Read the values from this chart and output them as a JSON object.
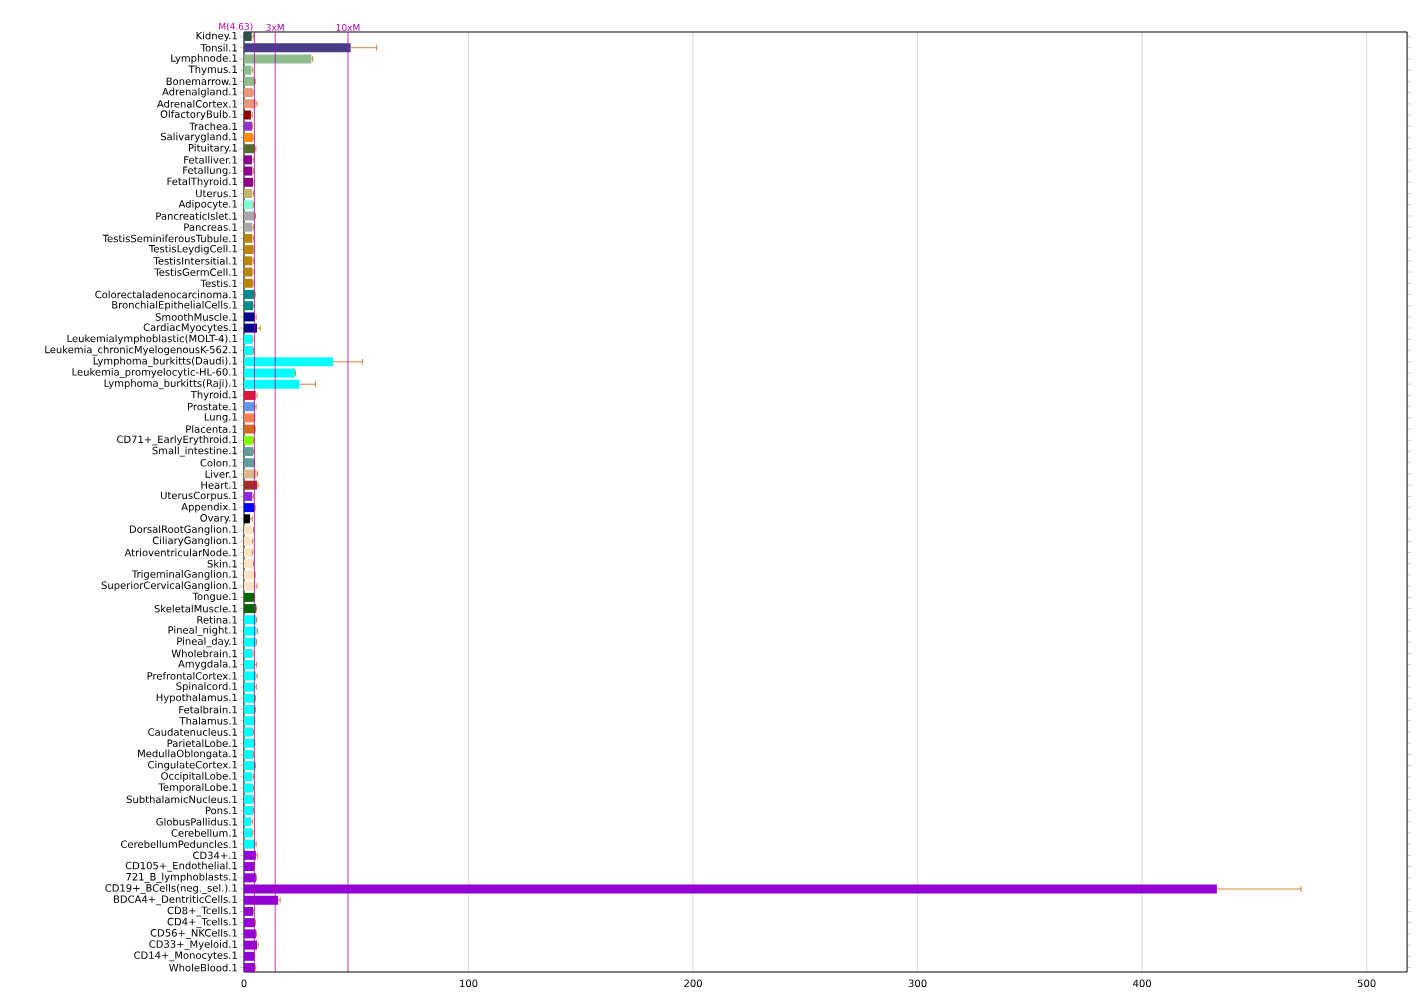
{
  "chart_data": {
    "type": "bar",
    "orientation": "horizontal",
    "categories": [
      "Kidney.1",
      "Tonsil.1",
      "Lymphnode.1",
      "Thymus.1",
      "Bonemarrow.1",
      "Adrenalgland.1",
      "AdrenalCortex.1",
      "OlfactoryBulb.1",
      "Trachea.1",
      "Salivarygland.1",
      "Pituitary.1",
      "Fetalliver.1",
      "Fetallung.1",
      "FetalThyroid.1",
      "Uterus.1",
      "Adipocyte.1",
      "PancreaticIslet.1",
      "Pancreas.1",
      "TestisSeminiferousTubule.1",
      "TestisLeydigCell.1",
      "TestisIntersitial.1",
      "TestisGermCell.1",
      "Testis.1",
      "Colorectaladenocarcinoma.1",
      "BronchialEpithelialCells.1",
      "SmoothMuscle.1",
      "CardiacMyocytes.1",
      "Leukemialymphoblastic(MOLT-4).1",
      "Leukemia_chronicMyelogenousK-562.1",
      "Lymphoma_burkitts(Daudi).1",
      "Leukemia_promyelocytic-HL-60.1",
      "Lymphoma_burkitts(Raji).1",
      "Thyroid.1",
      "Prostate.1",
      "Lung.1",
      "Placenta.1",
      "CD71+_EarlyErythroid.1",
      "Small_intestine.1",
      "Colon.1",
      "Liver.1",
      "Heart.1",
      "UterusCorpus.1",
      "Appendix.1",
      "Ovary.1",
      "DorsalRootGanglion.1",
      "CiliaryGanglion.1",
      "AtrioventricularNode.1",
      "Skin.1",
      "TrigeminalGanglion.1",
      "SuperiorCervicalGanglion.1",
      "Tongue.1",
      "SkeletalMuscle.1",
      "Retina.1",
      "Pineal_night.1",
      "Pineal_day.1",
      "Wholebrain.1",
      "Amygdala.1",
      "PrefrontalCortex.1",
      "Spinalcord.1",
      "Hypothalamus.1",
      "Fetalbrain.1",
      "Thalamus.1",
      "Caudatenucleus.1",
      "ParietalLobe.1",
      "MedullaOblongata.1",
      "CingulateCortex.1",
      "OccipitalLobe.1",
      "TemporalLobe.1",
      "SubthalamicNucleus.1",
      "Pons.1",
      "GlobusPallidus.1",
      "Cerebellum.1",
      "CerebellumPeduncles.1",
      "CD34+.1",
      "CD105+_Endothelial.1",
      "721_B_lymphoblasts.1",
      "CD19+_BCells(neg._sel.).1",
      "BDCA4+_DentriticCells.1",
      "CD8+_Tcells.1",
      "CD4+_Tcells.1",
      "CD56+_NKCells.1",
      "CD33+_Myeloid.1",
      "CD14+_Monocytes.1",
      "WholeBlood.1"
    ],
    "values": [
      3.4,
      47.5,
      30.0,
      3.3,
      4.6,
      3.9,
      5.2,
      3.1,
      3.6,
      3.9,
      4.8,
      3.6,
      3.7,
      4.0,
      3.7,
      4.0,
      4.6,
      3.7,
      3.7,
      4.2,
      3.7,
      3.7,
      3.9,
      4.6,
      4.0,
      4.8,
      5.8,
      3.7,
      4.0,
      39.7,
      22.7,
      24.7,
      5.2,
      4.8,
      4.6,
      4.8,
      4.0,
      4.0,
      4.6,
      5.5,
      5.8,
      3.7,
      4.6,
      2.7,
      3.7,
      3.3,
      3.6,
      4.0,
      4.6,
      5.2,
      4.6,
      5.3,
      5.3,
      5.5,
      5.3,
      3.7,
      4.6,
      5.3,
      4.8,
      4.8,
      4.8,
      4.6,
      4.0,
      4.6,
      4.0,
      4.8,
      3.7,
      4.0,
      4.0,
      4.0,
      3.1,
      3.7,
      4.8,
      5.3,
      4.6,
      5.3,
      433.3,
      15.2,
      4.0,
      4.8,
      5.3,
      5.8,
      4.6,
      4.8
    ],
    "errors": [
      [
        3.4,
        4.1
      ],
      [
        47.5,
        59.0
      ],
      [
        30.0,
        30.6
      ],
      [
        3.3,
        3.9
      ],
      [
        4.6,
        5.0
      ],
      [
        3.9,
        4.1
      ],
      [
        5.2,
        5.8
      ],
      [
        3.1,
        3.7
      ],
      [
        3.6,
        3.8
      ],
      [
        3.9,
        4.1
      ],
      [
        4.8,
        5.3
      ],
      [
        3.6,
        4.4
      ],
      [
        3.7,
        4.3
      ],
      [
        4.0,
        4.5
      ],
      [
        3.7,
        4.3
      ],
      [
        4.0,
        4.3
      ],
      [
        4.6,
        5.1
      ],
      [
        3.7,
        4.3
      ],
      [
        3.7,
        4.3
      ],
      [
        4.2,
        4.5
      ],
      [
        3.7,
        4.3
      ],
      [
        3.7,
        4.0
      ],
      [
        3.9,
        4.1
      ],
      [
        4.6,
        5.0
      ],
      [
        4.0,
        4.5
      ],
      [
        4.8,
        5.4
      ],
      [
        5.8,
        7.3
      ],
      [
        3.7,
        3.9
      ],
      [
        4.0,
        4.3
      ],
      [
        39.7,
        52.7
      ],
      [
        22.7,
        23.0
      ],
      [
        24.7,
        31.8
      ],
      [
        5.2,
        5.8
      ],
      [
        4.8,
        5.4
      ],
      [
        4.6,
        4.8
      ],
      [
        4.8,
        5.0
      ],
      [
        4.0,
        4.3
      ],
      [
        4.0,
        4.3
      ],
      [
        4.6,
        4.8
      ],
      [
        5.5,
        6.0
      ],
      [
        5.8,
        6.3
      ],
      [
        3.7,
        4.2
      ],
      [
        4.6,
        5.0
      ],
      [
        2.7,
        3.7
      ],
      [
        3.7,
        4.3
      ],
      [
        3.3,
        3.9
      ],
      [
        3.6,
        3.9
      ],
      [
        4.0,
        4.3
      ],
      [
        4.6,
        5.0
      ],
      [
        5.2,
        5.8
      ],
      [
        4.6,
        4.8
      ],
      [
        5.3,
        5.6
      ],
      [
        5.3,
        5.6
      ],
      [
        5.5,
        6.0
      ],
      [
        5.3,
        5.6
      ],
      [
        3.7,
        4.0
      ],
      [
        4.6,
        5.6
      ],
      [
        5.3,
        5.8
      ],
      [
        4.8,
        5.5
      ],
      [
        4.8,
        5.1
      ],
      [
        4.8,
        5.1
      ],
      [
        4.6,
        4.8
      ],
      [
        4.0,
        4.3
      ],
      [
        4.6,
        4.8
      ],
      [
        4.0,
        4.3
      ],
      [
        4.8,
        5.1
      ],
      [
        3.7,
        4.3
      ],
      [
        4.0,
        4.3
      ],
      [
        4.0,
        4.3
      ],
      [
        4.0,
        4.3
      ],
      [
        3.1,
        3.7
      ],
      [
        3.7,
        3.9
      ],
      [
        4.8,
        5.4
      ],
      [
        5.3,
        5.9
      ],
      [
        4.6,
        4.8
      ],
      [
        5.3,
        5.6
      ],
      [
        433.3,
        470.8
      ],
      [
        15.2,
        16.1
      ],
      [
        4.0,
        4.3
      ],
      [
        4.8,
        5.1
      ],
      [
        5.3,
        5.6
      ],
      [
        5.8,
        6.3
      ],
      [
        4.6,
        4.8
      ],
      [
        4.8,
        5.2
      ]
    ],
    "colors": [
      "#2f4f4f",
      "#483d8b",
      "#8fbc8f",
      "#8fbc8f",
      "#8fbc8f",
      "#e9967a",
      "#e9967a",
      "#8b0000",
      "#9932cc",
      "#ff8c00",
      "#556b2f",
      "#8b008b",
      "#8b008b",
      "#8b008b",
      "#bdb76b",
      "#7fffd4",
      "#a9a9a9",
      "#a9a9a9",
      "#b8860b",
      "#b8860b",
      "#b8860b",
      "#b8860b",
      "#b8860b",
      "#008b8b",
      "#008b8b",
      "#00008b",
      "#00008b",
      "#00ffff",
      "#00ffff",
      "#00ffff",
      "#00ffff",
      "#00ffff",
      "#dc143c",
      "#6495ed",
      "#ff7f50",
      "#d2691e",
      "#7fff00",
      "#5f9ea0",
      "#5f9ea0",
      "#deb887",
      "#a52a2a",
      "#8a2be2",
      "#0000ff",
      "#000000",
      "#ffe4c4",
      "#ffe4c4",
      "#ffe4c4",
      "#ffe4c4",
      "#ffe4c4",
      "#ffe4c4",
      "#006400",
      "#006400",
      "#00ffff",
      "#00ffff",
      "#00ffff",
      "#00ffff",
      "#00ffff",
      "#00ffff",
      "#00ffff",
      "#00ffff",
      "#00ffff",
      "#00ffff",
      "#00ffff",
      "#00ffff",
      "#00ffff",
      "#00ffff",
      "#00ffff",
      "#00ffff",
      "#00ffff",
      "#00ffff",
      "#00ffff",
      "#00ffff",
      "#00ffff",
      "#9400d3",
      "#9400d3",
      "#9400d3",
      "#9400d3",
      "#9400d3",
      "#9400d3",
      "#9400d3",
      "#9400d3",
      "#9400d3",
      "#9400d3",
      "#9400d3"
    ],
    "xlim": [
      0,
      518
    ],
    "xticks": [
      0,
      100,
      200,
      300,
      400,
      500
    ],
    "grid": "x",
    "ref_lines": [
      {
        "axis": "x",
        "value": 4.63,
        "label": "M(4.63)",
        "color": "#b000b0"
      },
      {
        "axis": "x",
        "value": 13.89,
        "label": "3xM",
        "color": "#b000b0"
      },
      {
        "axis": "x",
        "value": 46.3,
        "label": "10xM",
        "color": "#b000b0"
      }
    ]
  }
}
